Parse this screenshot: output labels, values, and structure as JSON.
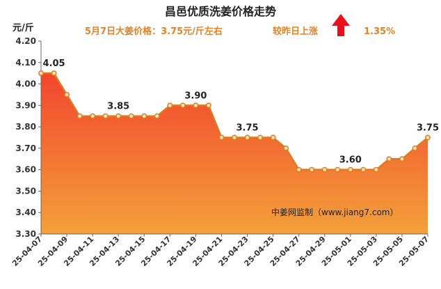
{
  "chart_data": {
    "type": "area",
    "title": "昌邑优质洗姜价格走势",
    "subtitle": "5月7日大姜价格：3.75元/斤左右",
    "change_label": "较昨日上涨",
    "change_value": "1.35%",
    "change_direction": "up",
    "unit_label": "元/斤",
    "watermark": "中姜网监制（www.jiang7.com）",
    "ylim": [
      3.3,
      4.2
    ],
    "yticks": [
      "3.30",
      "3.40",
      "3.50",
      "3.60",
      "3.70",
      "3.80",
      "3.90",
      "4.00",
      "4.10",
      "4.20"
    ],
    "x": [
      "25-04-07",
      "25-04-08",
      "25-04-09",
      "25-04-10",
      "25-04-11",
      "25-04-12",
      "25-04-13",
      "25-04-14",
      "25-04-15",
      "25-04-16",
      "25-04-17",
      "25-04-18",
      "25-04-19",
      "25-04-20",
      "25-04-21",
      "25-04-22",
      "25-04-23",
      "25-04-24",
      "25-04-25",
      "25-04-26",
      "25-04-27",
      "25-04-28",
      "25-04-29",
      "25-04-30",
      "25-05-01",
      "25-05-02",
      "25-05-03",
      "25-05-04",
      "25-05-05",
      "25-05-06",
      "25-05-07"
    ],
    "xtick_labels": [
      "25-04-07",
      "25-04-09",
      "25-04-11",
      "25-04-13",
      "25-04-15",
      "25-04-17",
      "25-04-19",
      "25-04-21",
      "25-04-23",
      "25-04-25",
      "25-04-27",
      "25-04-29",
      "25-05-01",
      "25-05-03",
      "25-05-05",
      "25-05-07"
    ],
    "values": [
      4.05,
      4.05,
      3.95,
      3.85,
      3.85,
      3.85,
      3.85,
      3.85,
      3.85,
      3.85,
      3.9,
      3.9,
      3.9,
      3.9,
      3.75,
      3.75,
      3.75,
      3.75,
      3.75,
      3.7,
      3.6,
      3.6,
      3.6,
      3.6,
      3.6,
      3.6,
      3.6,
      3.65,
      3.65,
      3.7,
      3.75
    ],
    "data_labels": [
      {
        "index": 1,
        "text": "4.05"
      },
      {
        "index": 6,
        "text": "3.85"
      },
      {
        "index": 12,
        "text": "3.90"
      },
      {
        "index": 16,
        "text": "3.75"
      },
      {
        "index": 24,
        "text": "3.60"
      },
      {
        "index": 30,
        "text": "3.75"
      }
    ],
    "colors": {
      "line": "#e07a1e",
      "marker_fill": "#fce7b3",
      "area_top": "#f2452d",
      "area_bottom": "#f3a13a",
      "subtitle": "#e9811f",
      "arrow": "#e8101a"
    },
    "grid": false,
    "legend": "none"
  }
}
